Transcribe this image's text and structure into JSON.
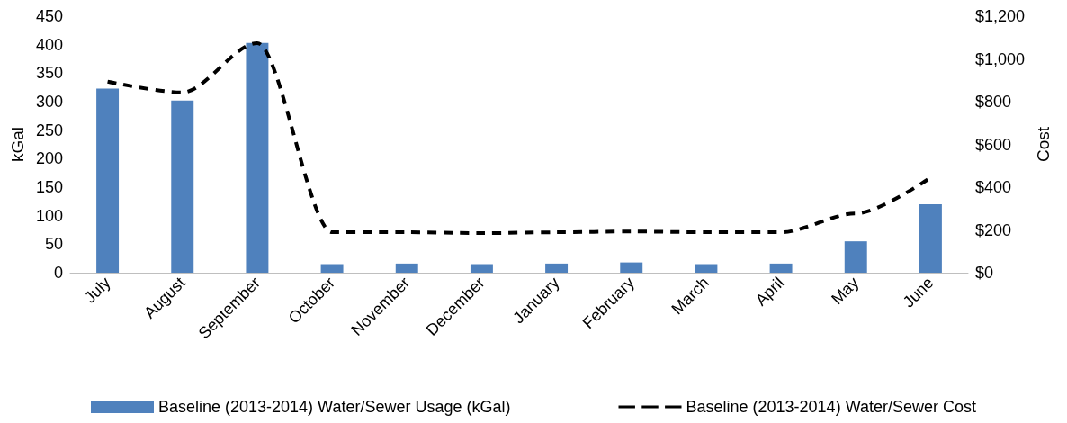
{
  "chart_data": {
    "type": "bar",
    "categories": [
      "July",
      "August",
      "September",
      "October",
      "November",
      "December",
      "January",
      "February",
      "March",
      "April",
      "May",
      "June"
    ],
    "ylabel": "kGal",
    "y2label": "Cost",
    "series": [
      {
        "name": "Baseline (2013-2014) Water/Sewer Usage (kGal)",
        "color": "#4f81bd",
        "values": [
          323,
          302,
          403,
          15,
          16,
          15,
          16,
          18,
          15,
          16,
          55,
          120
        ]
      },
      {
        "name": "Baseline (2013-2014) Water/Sewer Cost",
        "type": "line",
        "axis": "y2",
        "color": "#000000",
        "line_style": "dashed",
        "marker": "none",
        "values": [
          894,
          843,
          1074,
          189,
          189,
          185,
          189,
          193,
          189,
          189,
          277,
          445
        ]
      }
    ],
    "ylim": [
      0,
      450
    ],
    "yticks": [
      0,
      50,
      100,
      150,
      200,
      250,
      300,
      350,
      400,
      450
    ],
    "y2lim": [
      0,
      1200
    ],
    "y2ticks": [
      {
        "value": 0,
        "label": "$0"
      },
      {
        "value": 200,
        "label": "$200"
      },
      {
        "value": 400,
        "label": "$400"
      },
      {
        "value": 600,
        "label": "$600"
      },
      {
        "value": 800,
        "label": "$800"
      },
      {
        "value": 1000,
        "label": "$1,000"
      },
      {
        "value": 1200,
        "label": "$1,200"
      }
    ],
    "grid": false,
    "legend": "bottom"
  }
}
